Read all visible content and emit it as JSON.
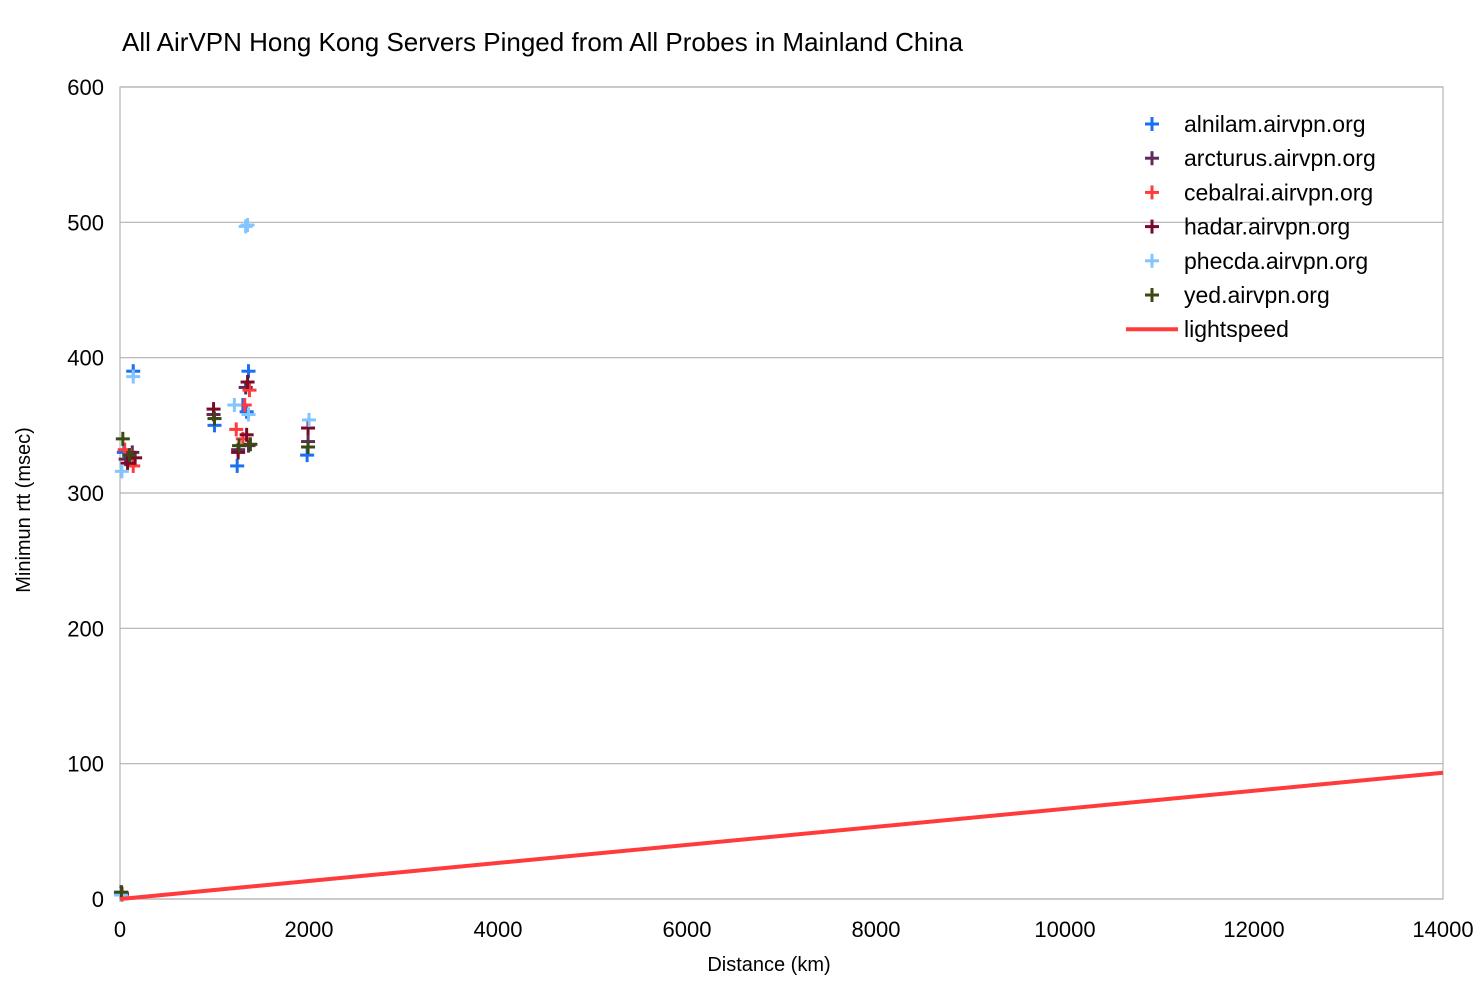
{
  "chart_data": {
    "type": "scatter",
    "title": "All AirVPN Hong Kong Servers Pinged from All Probes in Mainland China",
    "xlabel": "Distance (km)",
    "ylabel": "Minimun rtt (msec)",
    "xlim": [
      0,
      14000
    ],
    "ylim": [
      0,
      600
    ],
    "x_ticks": [
      0,
      2000,
      4000,
      6000,
      8000,
      10000,
      12000,
      14000
    ],
    "y_ticks": [
      0,
      100,
      200,
      300,
      400,
      500,
      600
    ],
    "grid": "horizontal",
    "legend_position": "top-right",
    "series": [
      {
        "name": "alnilam.airvpn.org",
        "kind": "scatter",
        "color": "#1a6ff2",
        "points": [
          [
            10,
            5
          ],
          [
            40,
            330
          ],
          [
            140,
            390
          ],
          [
            1000,
            350
          ],
          [
            1240,
            320
          ],
          [
            1300,
            365
          ],
          [
            1360,
            390
          ],
          [
            1980,
            328
          ],
          [
            1340,
            360
          ]
        ]
      },
      {
        "name": "arcturus.airvpn.org",
        "kind": "scatter",
        "color": "#5e2a5a",
        "points": [
          [
            10,
            4
          ],
          [
            60,
            325
          ],
          [
            130,
            330
          ],
          [
            990,
            358
          ],
          [
            1250,
            332
          ],
          [
            1330,
            378
          ],
          [
            1360,
            335
          ],
          [
            1990,
            338
          ]
        ]
      },
      {
        "name": "cebalrai.airvpn.org",
        "kind": "scatter",
        "color": "#ff3b3b",
        "points": [
          [
            20,
            3
          ],
          [
            50,
            332
          ],
          [
            140,
            320
          ],
          [
            1000,
            355
          ],
          [
            1230,
            347
          ],
          [
            1320,
            365
          ],
          [
            1370,
            376
          ],
          [
            1300,
            340
          ]
        ]
      },
      {
        "name": "hadar.airvpn.org",
        "kind": "scatter",
        "color": "#7a0a2a",
        "points": [
          [
            20,
            4
          ],
          [
            80,
            322
          ],
          [
            160,
            326
          ],
          [
            990,
            362
          ],
          [
            1250,
            330
          ],
          [
            1340,
            343
          ],
          [
            1350,
            382
          ],
          [
            1990,
            348
          ]
        ]
      },
      {
        "name": "phecda.airvpn.org",
        "kind": "scatter",
        "color": "#82c5ff",
        "points": [
          [
            10,
            3
          ],
          [
            20,
            316
          ],
          [
            140,
            386
          ],
          [
            1210,
            365
          ],
          [
            1330,
            497
          ],
          [
            1350,
            498
          ],
          [
            1360,
            358
          ],
          [
            2000,
            354
          ]
        ]
      },
      {
        "name": "yed.airvpn.org",
        "kind": "scatter",
        "color": "#3b4a10",
        "points": [
          [
            15,
            5
          ],
          [
            30,
            340
          ],
          [
            100,
            328
          ],
          [
            1000,
            355
          ],
          [
            1260,
            335
          ],
          [
            1380,
            336
          ],
          [
            1990,
            334
          ]
        ]
      },
      {
        "name": "lightspeed",
        "kind": "line",
        "color": "#ff3b3b",
        "points": [
          [
            0,
            0
          ],
          [
            14000,
            93.3
          ]
        ]
      }
    ]
  }
}
